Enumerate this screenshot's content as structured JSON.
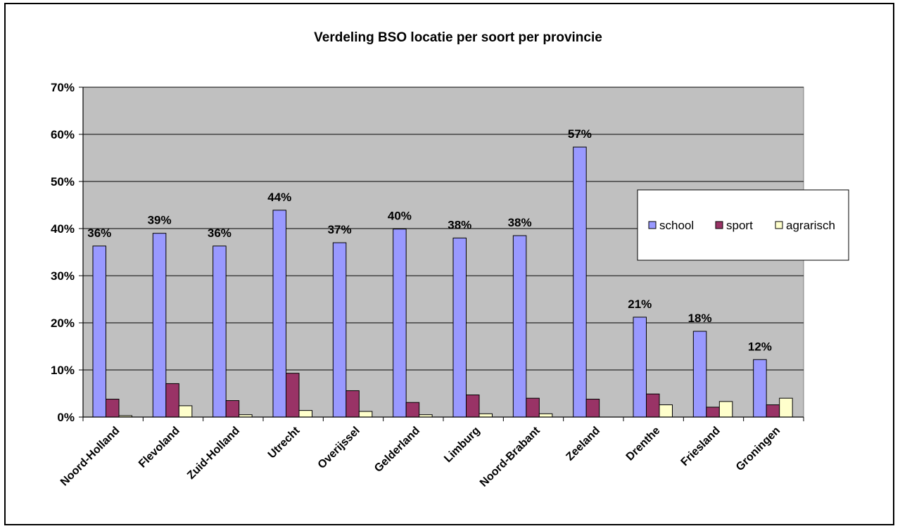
{
  "chart_data": {
    "type": "bar",
    "title": "Verdeling BSO locatie per soort per provincie",
    "xlabel": "",
    "ylabel": "",
    "ylim": [
      0,
      70
    ],
    "y_tick_labels": [
      "0%",
      "10%",
      "20%",
      "30%",
      "40%",
      "50%",
      "60%",
      "70%"
    ],
    "categories": [
      "Noord-Holland",
      "Flevoland",
      "Zuid-Holland",
      "Utrecht",
      "Overijssel",
      "Gelderland",
      "Limburg",
      "Noord-Brabant",
      "Zeeland",
      "Drenthe",
      "Friesland",
      "Groningen"
    ],
    "series": [
      {
        "name": "school",
        "color": "#9999ff",
        "values": [
          36.3,
          39.0,
          36.3,
          43.9,
          37.0,
          39.9,
          38.0,
          38.5,
          57.3,
          21.2,
          18.2,
          12.2
        ]
      },
      {
        "name": "sport",
        "color": "#993366",
        "values": [
          3.8,
          7.1,
          3.5,
          9.3,
          5.6,
          3.1,
          4.7,
          4.0,
          3.8,
          4.9,
          2.1,
          2.6
        ]
      },
      {
        "name": "agrarisch",
        "color": "#ffffcc",
        "values": [
          0.3,
          2.4,
          0.5,
          1.4,
          1.2,
          0.5,
          0.7,
          0.7,
          0.0,
          2.6,
          3.3,
          4.0
        ]
      }
    ],
    "data_labels": [
      "36%",
      "39%",
      "36%",
      "44%",
      "37%",
      "40%",
      "38%",
      "38%",
      "57%",
      "21%",
      "18%",
      "12%"
    ],
    "grid": true,
    "plot_background": "#c0c0c0",
    "legend_position": "right"
  }
}
